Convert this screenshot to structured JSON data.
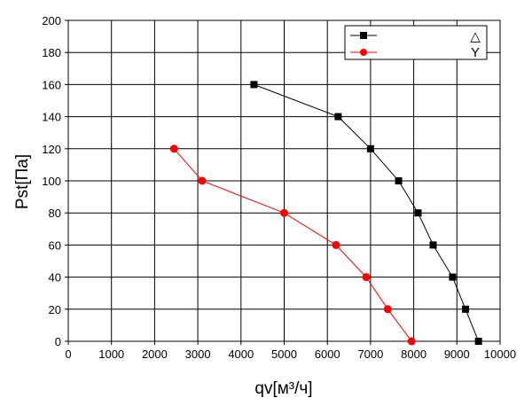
{
  "chart_data": {
    "type": "line",
    "title": "",
    "xlabel": "qv[м³/ч]",
    "ylabel": "Pst[Па]",
    "xlim": [
      0,
      10000
    ],
    "ylim": [
      0,
      200
    ],
    "x_ticks": [
      0,
      1000,
      2000,
      3000,
      4000,
      5000,
      6000,
      7000,
      8000,
      9000,
      10000
    ],
    "y_ticks": [
      0,
      20,
      40,
      60,
      80,
      100,
      120,
      140,
      160,
      180,
      200
    ],
    "x_tick_labels": [
      "0",
      "1000",
      "2000",
      "3000",
      "4000",
      "5000",
      "6000",
      "7000",
      "8000",
      "9000",
      "10000"
    ],
    "y_tick_labels": [
      "0",
      "20",
      "40",
      "60",
      "80",
      "100",
      "120",
      "140",
      "160",
      "180",
      "200"
    ],
    "grid": true,
    "legend_position": "top-right",
    "series": [
      {
        "name": "△",
        "marker": "square",
        "color": "#000000",
        "x": [
          4300,
          6250,
          7000,
          7650,
          8100,
          8450,
          8900,
          9200,
          9500
        ],
        "y": [
          160,
          140,
          120,
          100,
          80,
          60,
          40,
          20,
          0
        ]
      },
      {
        "name": "Y",
        "marker": "circle",
        "color": "#ff0000",
        "x": [
          2450,
          3100,
          5000,
          6200,
          6900,
          7400,
          7950
        ],
        "y": [
          120,
          100,
          80,
          60,
          40,
          20,
          0
        ]
      }
    ]
  }
}
